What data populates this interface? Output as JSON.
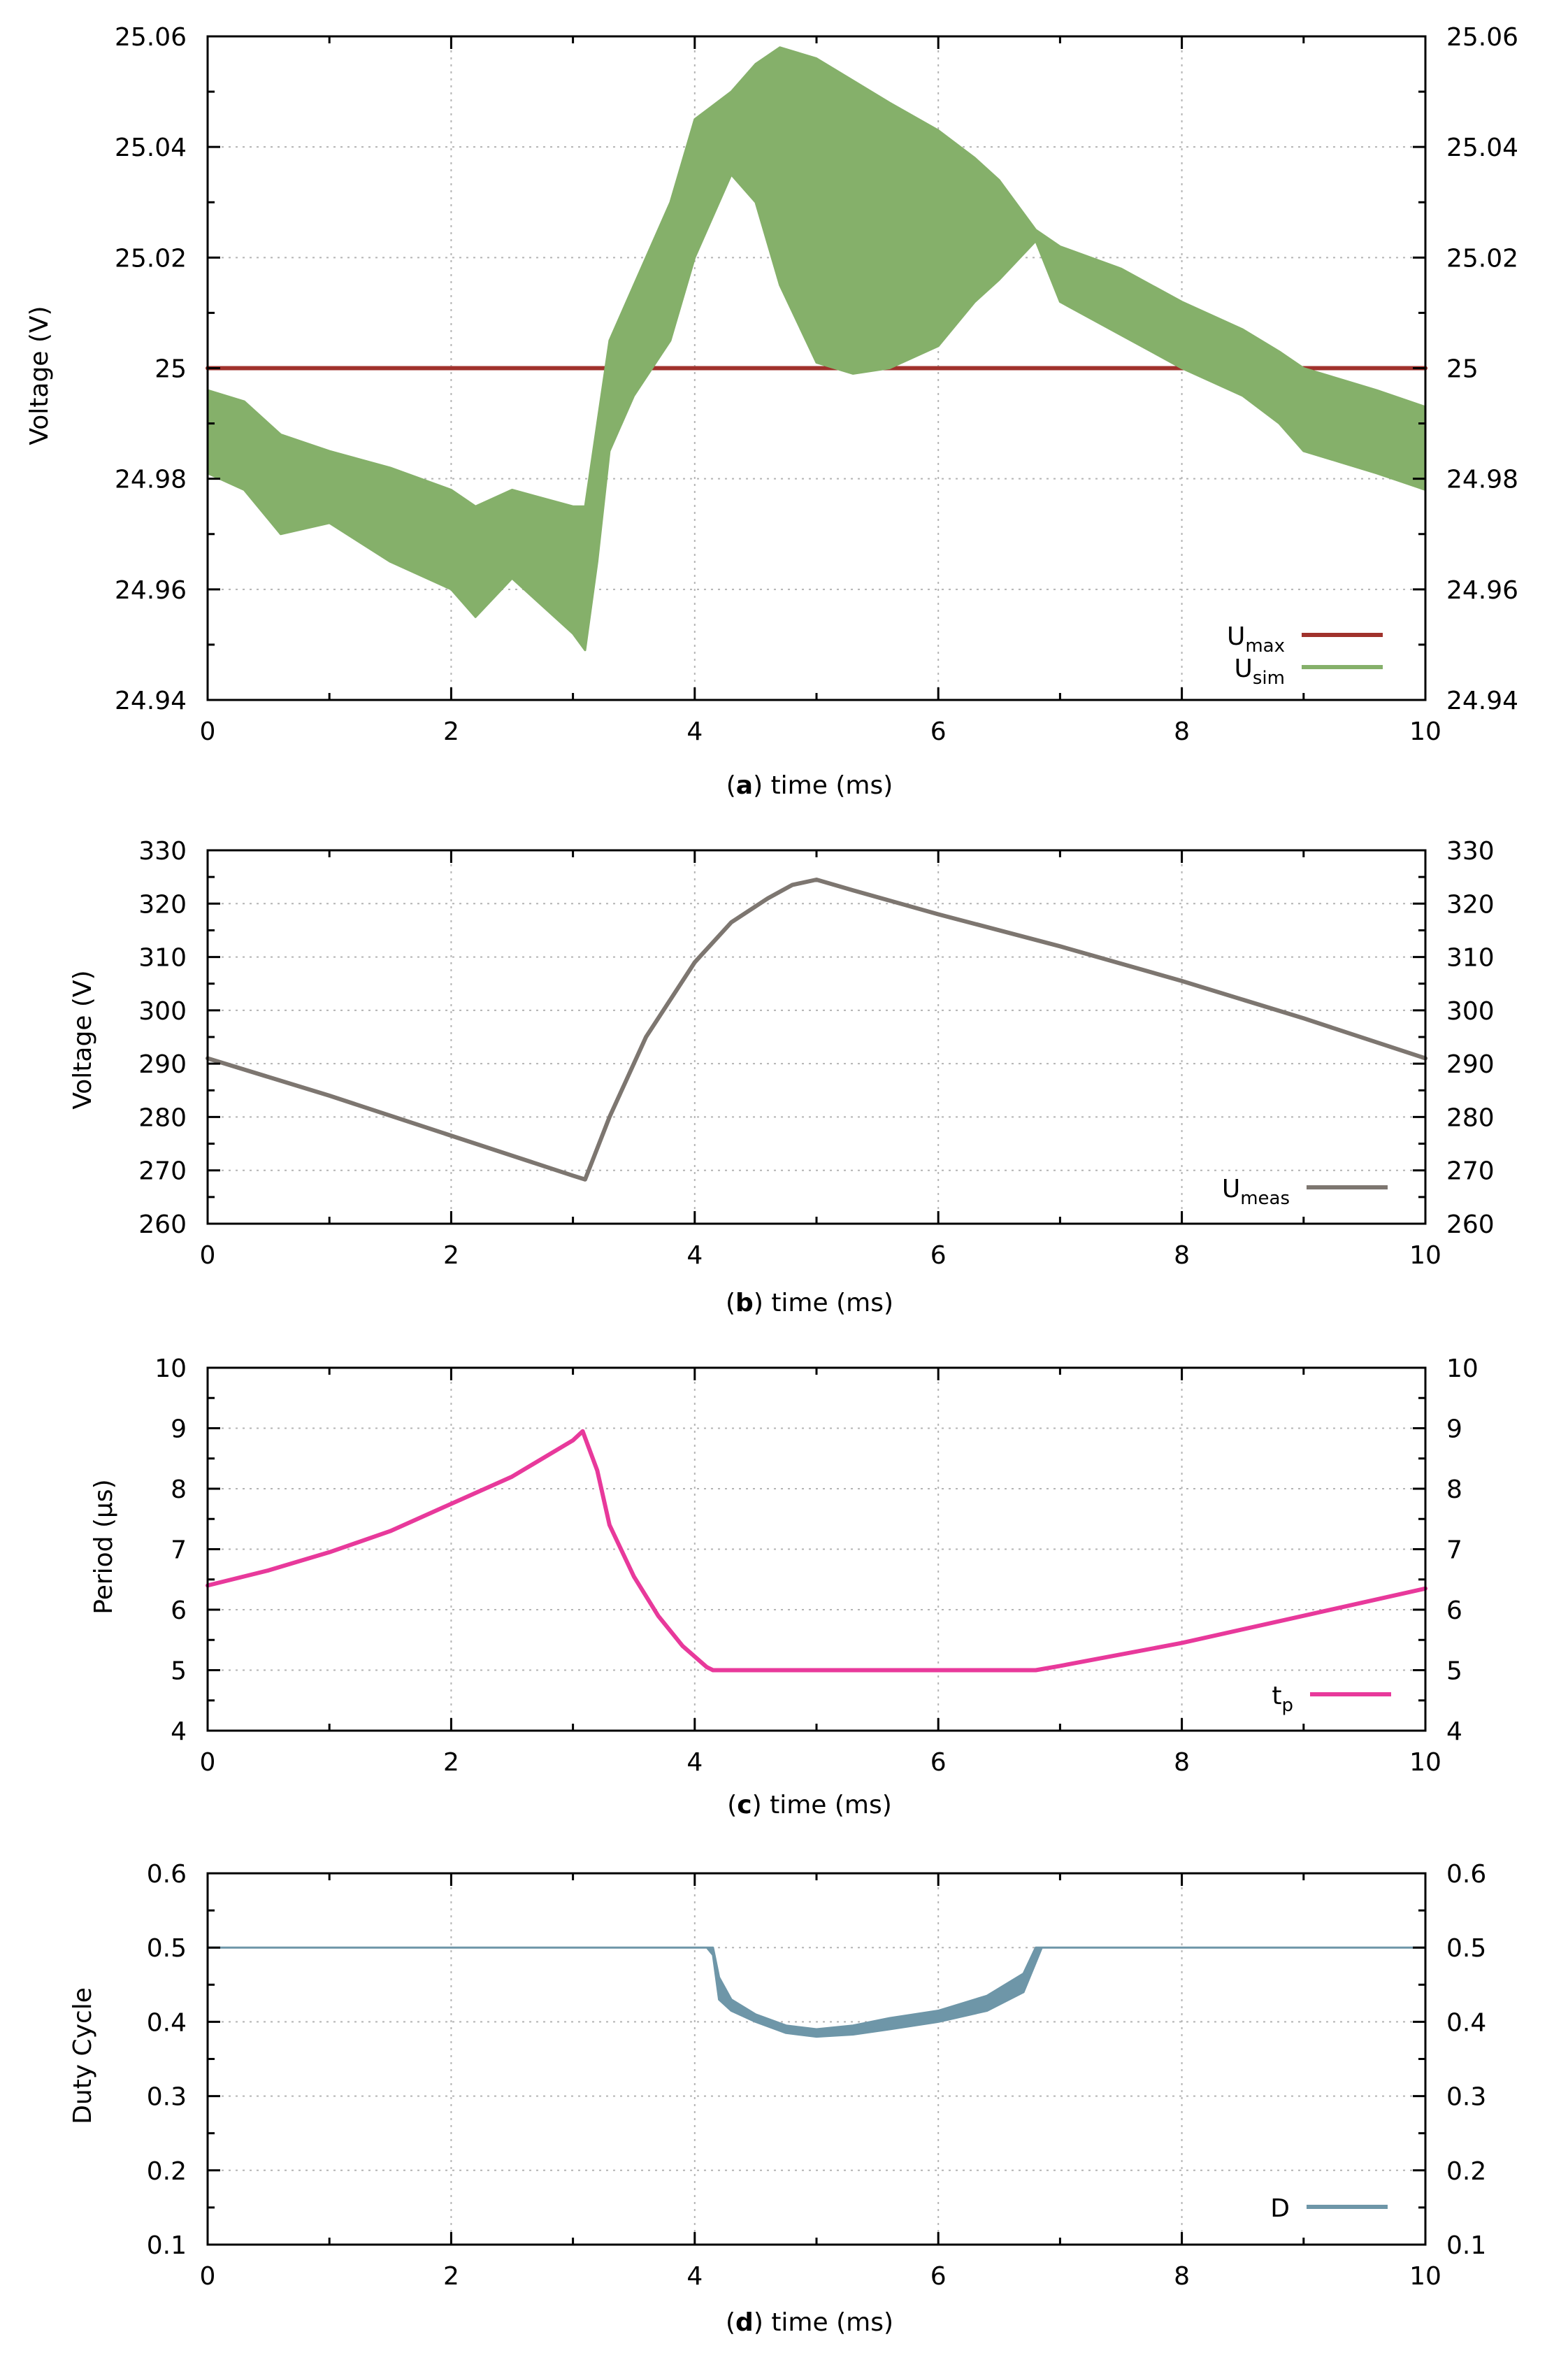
{
  "colors": {
    "u_max": "#a0322c",
    "u_sim": "#85b06a",
    "u_meas": "#7d7670",
    "t_p": "#e8399b",
    "duty": "#6e96a8",
    "grid": "#b4b4b4"
  },
  "chart_data": [
    {
      "id": "a",
      "type": "line",
      "caption_letter": "a",
      "xlabel": "time (ms)",
      "ylabel": "Voltage (V)",
      "xlim": [
        0,
        10
      ],
      "ylim": [
        24.94,
        25.06
      ],
      "xticks": [
        0,
        2,
        4,
        6,
        8,
        10
      ],
      "yticks": [
        24.94,
        24.96,
        24.98,
        25,
        25.02,
        25.04,
        25.06
      ],
      "ytick_labels": [
        "24.94",
        "24.96",
        "24.98",
        "25",
        "25.02",
        "25.04",
        "25.06"
      ],
      "grid": true,
      "legend_position": "bottom-right",
      "series": [
        {
          "name": "U_max",
          "legend_base": "U",
          "legend_sub": "max",
          "style": "line",
          "color_key": "u_max",
          "x": [
            0,
            10
          ],
          "y": [
            25.0,
            25.0
          ]
        },
        {
          "name": "U_sim",
          "legend_base": "U",
          "legend_sub": "sim",
          "style": "band",
          "color_key": "u_sim",
          "x": [
            0,
            0.3,
            0.6,
            1,
            1.5,
            2,
            2.2,
            2.5,
            3,
            3.1,
            3.2,
            3.3,
            3.5,
            3.8,
            4,
            4.3,
            4.5,
            4.7,
            5,
            5.3,
            5.6,
            6,
            6.3,
            6.5,
            6.8,
            7,
            7.5,
            8,
            8.5,
            8.8,
            9,
            9.3,
            9.6,
            10
          ],
          "y_min": [
            24.981,
            24.978,
            24.97,
            24.972,
            24.965,
            24.96,
            24.955,
            24.962,
            24.952,
            24.949,
            24.965,
            24.985,
            24.995,
            25.005,
            25.02,
            25.035,
            25.03,
            25.015,
            25.001,
            24.999,
            25.0,
            25.004,
            25.012,
            25.016,
            25.023,
            25.012,
            25.006,
            25.0,
            24.995,
            24.99,
            24.985,
            24.983,
            24.981,
            24.978
          ],
          "y_max": [
            24.996,
            24.994,
            24.988,
            24.985,
            24.982,
            24.978,
            24.975,
            24.978,
            24.975,
            24.975,
            24.99,
            25.005,
            25.015,
            25.03,
            25.045,
            25.05,
            25.055,
            25.058,
            25.056,
            25.052,
            25.048,
            25.043,
            25.038,
            25.034,
            25.025,
            25.022,
            25.018,
            25.012,
            25.007,
            25.003,
            25.0,
            24.998,
            24.996,
            24.993
          ]
        }
      ]
    },
    {
      "id": "b",
      "type": "line",
      "caption_letter": "b",
      "xlabel": "time (ms)",
      "ylabel": "Voltage (V)",
      "xlim": [
        0,
        10
      ],
      "ylim": [
        260,
        330
      ],
      "xticks": [
        0,
        2,
        4,
        6,
        8,
        10
      ],
      "yticks": [
        260,
        270,
        280,
        290,
        300,
        310,
        320,
        330
      ],
      "ytick_labels": [
        "260",
        "270",
        "280",
        "290",
        "300",
        "310",
        "320",
        "330"
      ],
      "grid": true,
      "legend_position": "bottom-right",
      "series": [
        {
          "name": "U_meas",
          "legend_base": "U",
          "legend_sub": "meas",
          "style": "line",
          "color_key": "u_meas",
          "x": [
            0,
            1,
            2,
            3,
            3.1,
            3.3,
            3.6,
            4,
            4.3,
            4.6,
            4.8,
            5,
            5.3,
            6,
            7,
            8,
            9,
            10
          ],
          "y": [
            291,
            284,
            276.5,
            269,
            268.3,
            280,
            295,
            309,
            316.5,
            321,
            323.5,
            324.5,
            322.5,
            318,
            312,
            305.5,
            298.5,
            291
          ]
        }
      ]
    },
    {
      "id": "c",
      "type": "line",
      "caption_letter": "c",
      "xlabel": "time (ms)",
      "ylabel": "Period (µs)",
      "xlim": [
        0,
        10
      ],
      "ylim": [
        4,
        10
      ],
      "xticks": [
        0,
        2,
        4,
        6,
        8,
        10
      ],
      "yticks": [
        4,
        5,
        6,
        7,
        8,
        9,
        10
      ],
      "ytick_labels": [
        "4",
        "5",
        "6",
        "7",
        "8",
        "9",
        "10"
      ],
      "grid": true,
      "legend_position": "bottom-right",
      "series": [
        {
          "name": "t_p",
          "legend_base": "t",
          "legend_sub": "p",
          "style": "line",
          "color_key": "t_p",
          "x": [
            0,
            0.5,
            1,
            1.5,
            2,
            2.5,
            3,
            3.08,
            3.2,
            3.3,
            3.5,
            3.7,
            3.9,
            4.1,
            4.15,
            5,
            6,
            6.8,
            7,
            8,
            9,
            10
          ],
          "y": [
            6.4,
            6.65,
            6.95,
            7.3,
            7.75,
            8.2,
            8.8,
            8.95,
            8.3,
            7.4,
            6.55,
            5.9,
            5.4,
            5.05,
            5.0,
            5.0,
            5.0,
            5.0,
            5.07,
            5.45,
            5.9,
            6.35
          ]
        }
      ]
    },
    {
      "id": "d",
      "type": "line",
      "caption_letter": "d",
      "xlabel": "time (ms)",
      "ylabel": "Duty Cycle",
      "xlim": [
        0,
        10
      ],
      "ylim": [
        0.1,
        0.6
      ],
      "xticks": [
        0,
        2,
        4,
        6,
        8,
        10
      ],
      "yticks": [
        0.1,
        0.2,
        0.3,
        0.4,
        0.5,
        0.6
      ],
      "ytick_labels": [
        "0.1",
        "0.2",
        "0.3",
        "0.4",
        "0.5",
        "0.6"
      ],
      "grid": true,
      "legend_position": "bottom-right",
      "series": [
        {
          "name": "D",
          "legend_base": "D",
          "legend_sub": "",
          "style": "band",
          "color_key": "duty",
          "x": [
            0,
            4.1,
            4.15,
            4.2,
            4.3,
            4.5,
            4.75,
            5,
            5.3,
            5.6,
            6,
            6.4,
            6.7,
            6.8,
            6.85,
            10
          ],
          "y_min": [
            0.5,
            0.5,
            0.49,
            0.43,
            0.415,
            0.4,
            0.385,
            0.38,
            0.383,
            0.39,
            0.4,
            0.415,
            0.44,
            0.48,
            0.5,
            0.5
          ],
          "y_max": [
            0.5,
            0.5,
            0.5,
            0.46,
            0.43,
            0.41,
            0.395,
            0.39,
            0.395,
            0.405,
            0.415,
            0.435,
            0.465,
            0.5,
            0.5,
            0.5
          ]
        }
      ]
    }
  ]
}
